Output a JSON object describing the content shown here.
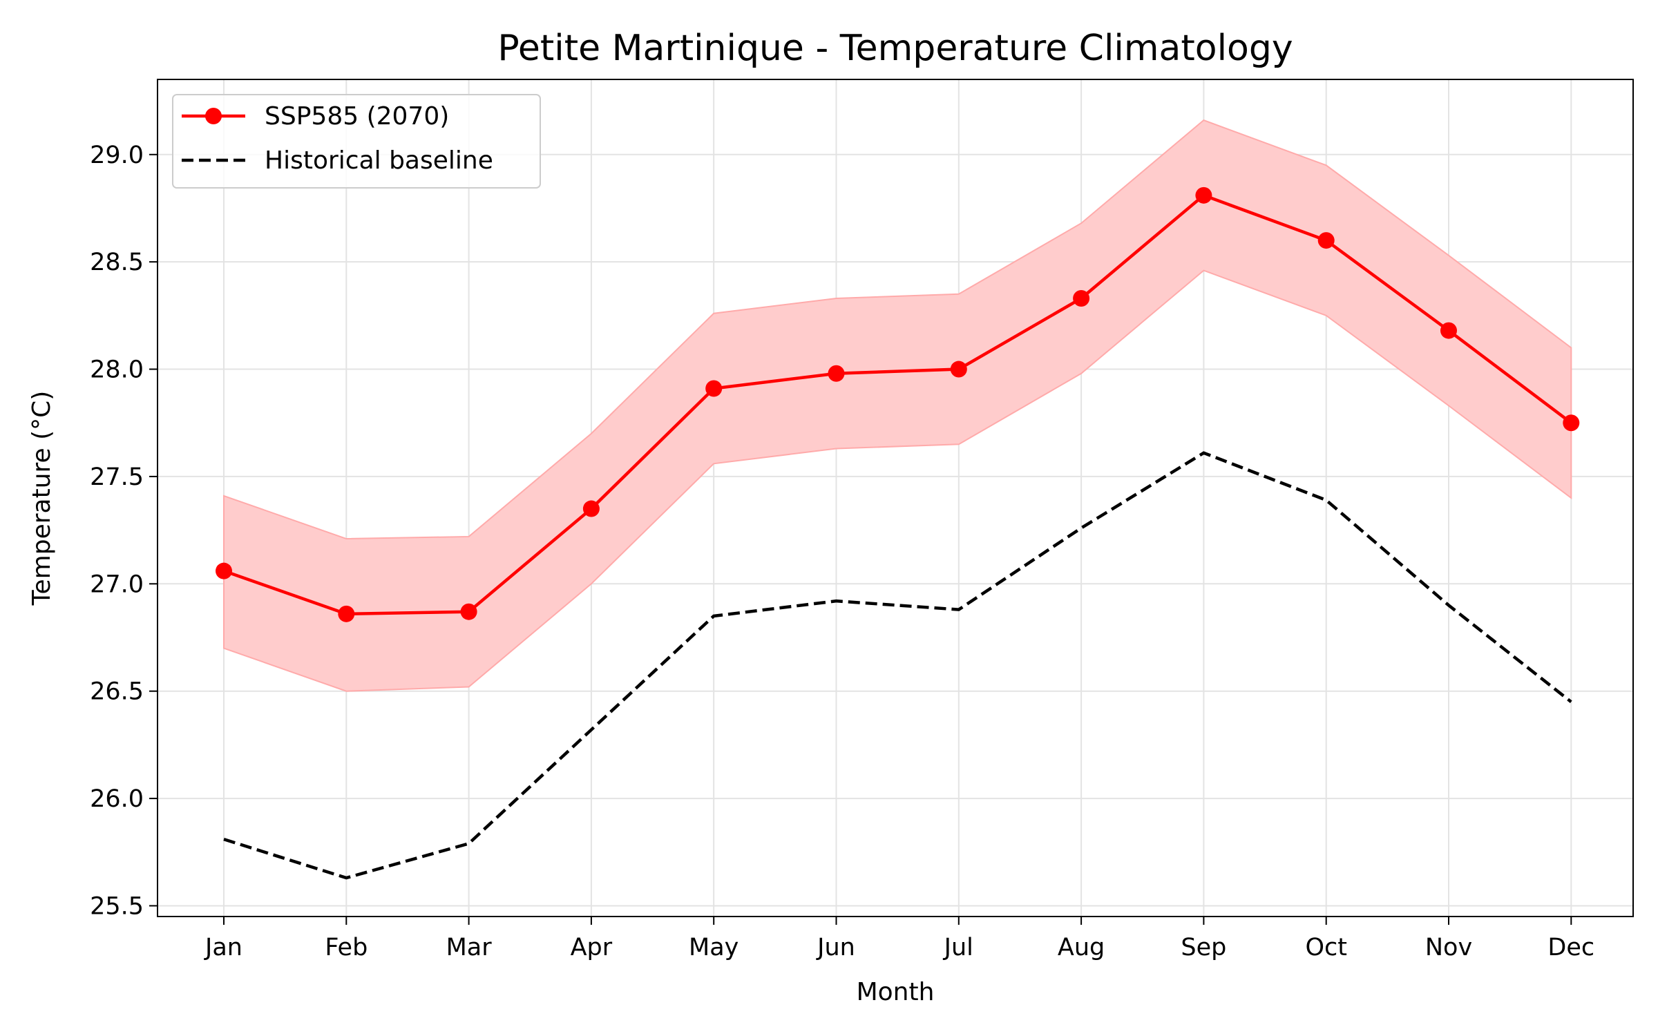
{
  "chart_data": {
    "type": "line",
    "title": "Petite Martinique - Temperature Climatology",
    "xlabel": "Month",
    "ylabel": "Temperature (°C)",
    "categories": [
      "Jan",
      "Feb",
      "Mar",
      "Apr",
      "May",
      "Jun",
      "Jul",
      "Aug",
      "Sep",
      "Oct",
      "Nov",
      "Dec"
    ],
    "ylim": [
      25.45,
      29.35
    ],
    "yticks": [
      25.5,
      26.0,
      26.5,
      27.0,
      27.5,
      28.0,
      28.5,
      29.0
    ],
    "ytick_labels": [
      "25.5",
      "26.0",
      "26.5",
      "27.0",
      "27.5",
      "28.0",
      "28.5",
      "29.0"
    ],
    "grid": true,
    "legend_position": "top-left",
    "series": [
      {
        "name": "SSP585 (2070)",
        "style": "solid-with-markers",
        "color": "#ff0000",
        "values": [
          27.06,
          26.86,
          26.87,
          27.35,
          27.91,
          27.98,
          28.0,
          28.33,
          28.81,
          28.6,
          28.18,
          27.75
        ],
        "band_lower": [
          26.7,
          26.5,
          26.52,
          27.0,
          27.56,
          27.63,
          27.65,
          27.98,
          28.46,
          28.25,
          27.83,
          27.4
        ],
        "band_upper": [
          27.41,
          27.21,
          27.22,
          27.7,
          28.26,
          28.33,
          28.35,
          28.68,
          29.16,
          28.95,
          28.53,
          28.1
        ],
        "band_color": "#ffcccc"
      },
      {
        "name": "Historical baseline",
        "style": "dashed",
        "color": "#000000",
        "values": [
          25.81,
          25.63,
          25.79,
          26.32,
          26.85,
          26.92,
          26.88,
          27.26,
          27.61,
          27.39,
          26.9,
          26.45
        ]
      }
    ]
  }
}
